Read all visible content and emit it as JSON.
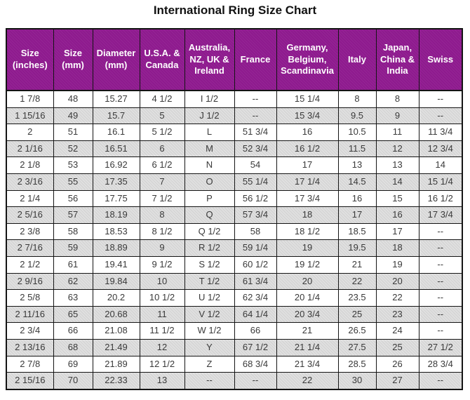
{
  "title": "International Ring Size Chart",
  "colors": {
    "header_bg": "#8e1a8e",
    "header_text": "#ffffff",
    "row_bg": "#ffffff",
    "row_alt_bg": "#d6d6d6",
    "border": "#141414",
    "body_text": "#3a3a3a",
    "title_text": "#111111"
  },
  "chart_data": {
    "type": "table",
    "title": "International Ring Size Chart",
    "columns": [
      "Size (inches)",
      "Size (mm)",
      "Diameter (mm)",
      "U.S.A. & Canada",
      "Australia, NZ, UK & Ireland",
      "France",
      "Germany, Belgium, Scandinavia",
      "Italy",
      "Japan, China & India",
      "Swiss"
    ],
    "rows": [
      [
        "1 7/8",
        "48",
        "15.27",
        "4 1/2",
        "I 1/2",
        "--",
        "15 1/4",
        "8",
        "8",
        "--"
      ],
      [
        "1 15/16",
        "49",
        "15.7",
        "5",
        "J 1/2",
        "--",
        "15 3/4",
        "9.5",
        "9",
        "--"
      ],
      [
        "2",
        "51",
        "16.1",
        "5 1/2",
        "L",
        "51 3/4",
        "16",
        "10.5",
        "11",
        "11 3/4"
      ],
      [
        "2 1/16",
        "52",
        "16.51",
        "6",
        "M",
        "52 3/4",
        "16 1/2",
        "11.5",
        "12",
        "12 3/4"
      ],
      [
        "2 1/8",
        "53",
        "16.92",
        "6 1/2",
        "N",
        "54",
        "17",
        "13",
        "13",
        "14"
      ],
      [
        "2 3/16",
        "55",
        "17.35",
        "7",
        "O",
        "55 1/4",
        "17 1/4",
        "14.5",
        "14",
        "15 1/4"
      ],
      [
        "2 1/4",
        "56",
        "17.75",
        "7 1/2",
        "P",
        "56 1/2",
        "17 3/4",
        "16",
        "15",
        "16 1/2"
      ],
      [
        "2 5/16",
        "57",
        "18.19",
        "8",
        "Q",
        "57 3/4",
        "18",
        "17",
        "16",
        "17 3/4"
      ],
      [
        "2 3/8",
        "58",
        "18.53",
        "8 1/2",
        "Q 1/2",
        "58",
        "18 1/2",
        "18.5",
        "17",
        "--"
      ],
      [
        "2 7/16",
        "59",
        "18.89",
        "9",
        "R 1/2",
        "59 1/4",
        "19",
        "19.5",
        "18",
        "--"
      ],
      [
        "2 1/2",
        "61",
        "19.41",
        "9 1/2",
        "S 1/2",
        "60 1/2",
        "19 1/2",
        "21",
        "19",
        "--"
      ],
      [
        "2 9/16",
        "62",
        "19.84",
        "10",
        "T 1/2",
        "61 3/4",
        "20",
        "22",
        "20",
        "--"
      ],
      [
        "2 5/8",
        "63",
        "20.2",
        "10 1/2",
        "U 1/2",
        "62 3/4",
        "20 1/4",
        "23.5",
        "22",
        "--"
      ],
      [
        "2 11/16",
        "65",
        "20.68",
        "11",
        "V 1/2",
        "64 1/4",
        "20 3/4",
        "25",
        "23",
        "--"
      ],
      [
        "2 3/4",
        "66",
        "21.08",
        "11 1/2",
        "W 1/2",
        "66",
        "21",
        "26.5",
        "24",
        "--"
      ],
      [
        "2 13/16",
        "68",
        "21.49",
        "12",
        "Y",
        "67 1/2",
        "21 1/4",
        "27.5",
        "25",
        "27 1/2"
      ],
      [
        "2 7/8",
        "69",
        "21.89",
        "12 1/2",
        "Z",
        "68 3/4",
        "21 3/4",
        "28.5",
        "26",
        "28 3/4"
      ],
      [
        "2 15/16",
        "70",
        "22.33",
        "13",
        "--",
        "--",
        "22",
        "30",
        "27",
        "--"
      ]
    ]
  }
}
